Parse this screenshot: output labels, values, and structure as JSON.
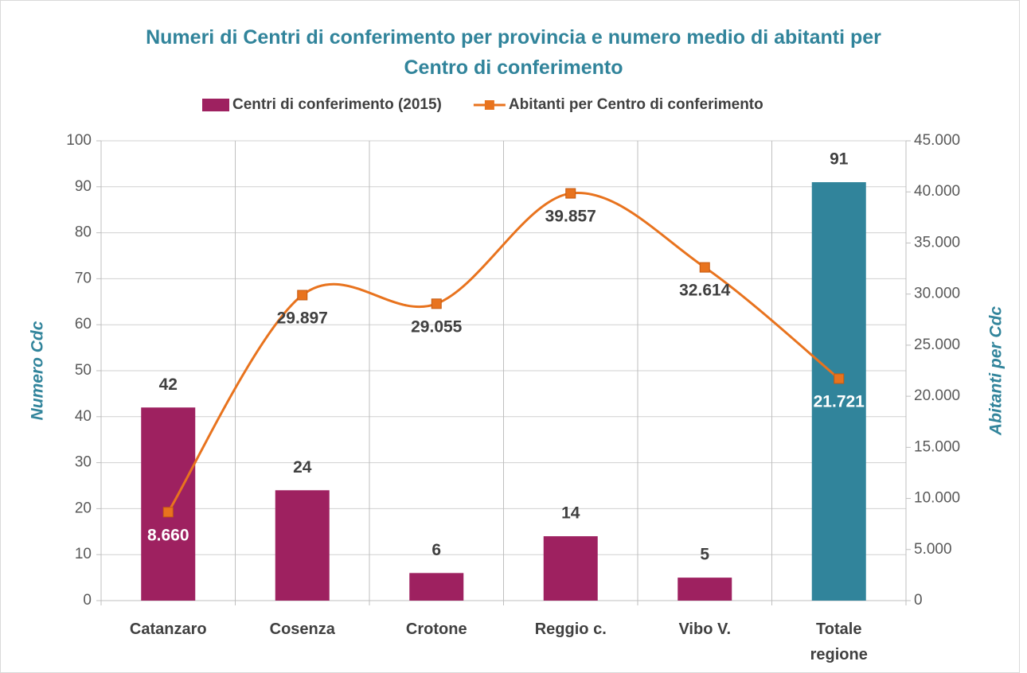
{
  "chart_data": {
    "type": "bar_line",
    "title": "Numeri di Centri di conferimento per provincia e numero medio di abitanti per Centro di conferimento",
    "categories": [
      "Catanzaro",
      "Cosenza",
      "Crotone",
      "Reggio c.",
      "Vibo V.",
      "Totale regione"
    ],
    "ylabel": "Numero Cdc",
    "y2label": "Abitanti per Cdc",
    "ylim": [
      0,
      100
    ],
    "yticks": [
      0,
      10,
      20,
      30,
      40,
      50,
      60,
      70,
      80,
      90,
      100
    ],
    "y2lim": [
      0,
      45000
    ],
    "y2ticks": [
      0,
      {
        "value": 5000,
        "label": "5.000"
      },
      {
        "value": 10000,
        "label": "10.000"
      },
      {
        "value": 15000,
        "label": "15.000"
      },
      {
        "value": 20000,
        "label": "20.000"
      },
      {
        "value": 25000,
        "label": "25.000"
      },
      {
        "value": 30000,
        "label": "30.000"
      },
      {
        "value": 35000,
        "label": "35.000"
      },
      {
        "value": 40000,
        "label": "40.000"
      },
      {
        "value": 45000,
        "label": "45.000"
      }
    ],
    "grid": true,
    "legend": "top",
    "series": [
      {
        "name": "Centri di conferimento (2015)",
        "type": "bar",
        "color": "#9e2160",
        "colors": [
          "#9e2160",
          "#9e2160",
          "#9e2160",
          "#9e2160",
          "#9e2160",
          "#31849b"
        ],
        "values": [
          42,
          24,
          6,
          14,
          5,
          91
        ]
      },
      {
        "name": "Abitanti per Centro di conferimento",
        "type": "line",
        "axis": "y2",
        "color": "#e8731e",
        "values": [
          8660,
          29897,
          29055,
          39857,
          32614,
          21721
        ],
        "value_labels": [
          "8.660",
          "29.897",
          "29.055",
          "39.857",
          "32.614",
          "21.721"
        ]
      }
    ]
  }
}
